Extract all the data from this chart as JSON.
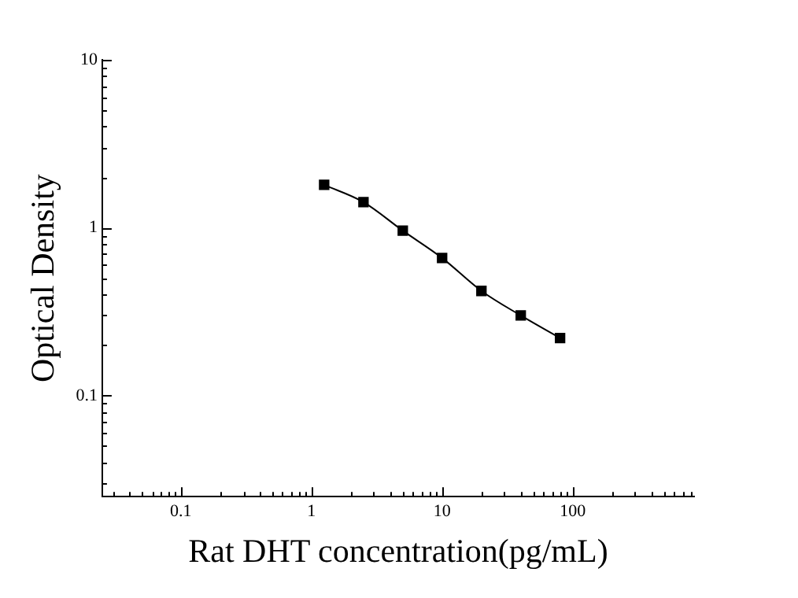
{
  "chart_data": {
    "type": "line",
    "xlabel": "Rat DHT concentration(pg/mL)",
    "ylabel": "Optical Density",
    "x": [
      1.25,
      2.5,
      5,
      10,
      20,
      40,
      80
    ],
    "series": [
      {
        "color": "#000000",
        "values": [
          1.8,
          1.42,
          0.96,
          0.66,
          0.42,
          0.3,
          0.22
        ]
      }
    ],
    "log": "xy",
    "marker": "square",
    "line_style": "solid",
    "grid": false,
    "legend": false,
    "xlim": [
      0.025,
      850
    ],
    "xticks": [
      {
        "value": 0.03,
        "label": null
      },
      {
        "value": 0.04,
        "label": null
      },
      {
        "value": 0.05,
        "label": null
      },
      {
        "value": 0.06,
        "label": null
      },
      {
        "value": 0.07,
        "label": null
      },
      {
        "value": 0.08,
        "label": null
      },
      {
        "value": 0.09,
        "label": null
      },
      0.1,
      {
        "value": 0.2,
        "label": null
      },
      {
        "value": 0.3,
        "label": null
      },
      {
        "value": 0.4,
        "label": null
      },
      {
        "value": 0.5,
        "label": null
      },
      {
        "value": 0.6,
        "label": null
      },
      {
        "value": 0.7,
        "label": null
      },
      {
        "value": 0.8,
        "label": null
      },
      {
        "value": 0.9,
        "label": null
      },
      1,
      {
        "value": 2,
        "label": null
      },
      {
        "value": 3,
        "label": null
      },
      {
        "value": 4,
        "label": null
      },
      {
        "value": 5,
        "label": null
      },
      {
        "value": 6,
        "label": null
      },
      {
        "value": 7,
        "label": null
      },
      {
        "value": 8,
        "label": null
      },
      {
        "value": 9,
        "label": null
      },
      10,
      {
        "value": 20,
        "label": null
      },
      {
        "value": 30,
        "label": null
      },
      {
        "value": 40,
        "label": null
      },
      {
        "value": 50,
        "label": null
      },
      {
        "value": 60,
        "label": null
      },
      {
        "value": 70,
        "label": null
      },
      {
        "value": 80,
        "label": null
      },
      {
        "value": 90,
        "label": null
      },
      100,
      {
        "value": 200,
        "label": null
      },
      {
        "value": 300,
        "label": null
      },
      {
        "value": 400,
        "label": null
      },
      {
        "value": 500,
        "label": null
      },
      {
        "value": 600,
        "label": null
      },
      {
        "value": 700,
        "label": null
      },
      {
        "value": 800,
        "label": null
      }
    ],
    "ylim": [
      0.025,
      10
    ],
    "yticks": [
      {
        "value": 0.03,
        "label": null
      },
      {
        "value": 0.04,
        "label": null
      },
      {
        "value": 0.05,
        "label": null
      },
      {
        "value": 0.06,
        "label": null
      },
      {
        "value": 0.07,
        "label": null
      },
      {
        "value": 0.08,
        "label": null
      },
      {
        "value": 0.09,
        "label": null
      },
      0.1,
      {
        "value": 0.2,
        "label": null
      },
      {
        "value": 0.3,
        "label": null
      },
      {
        "value": 0.4,
        "label": null
      },
      {
        "value": 0.5,
        "label": null
      },
      {
        "value": 0.6,
        "label": null
      },
      {
        "value": 0.7,
        "label": null
      },
      {
        "value": 0.8,
        "label": null
      },
      {
        "value": 0.9,
        "label": null
      },
      1,
      {
        "value": 2,
        "label": null
      },
      {
        "value": 3,
        "label": null
      },
      {
        "value": 4,
        "label": null
      },
      {
        "value": 5,
        "label": null
      },
      {
        "value": 6,
        "label": null
      },
      {
        "value": 7,
        "label": null
      },
      {
        "value": 8,
        "label": null
      },
      {
        "value": 9,
        "label": null
      },
      10
    ]
  }
}
